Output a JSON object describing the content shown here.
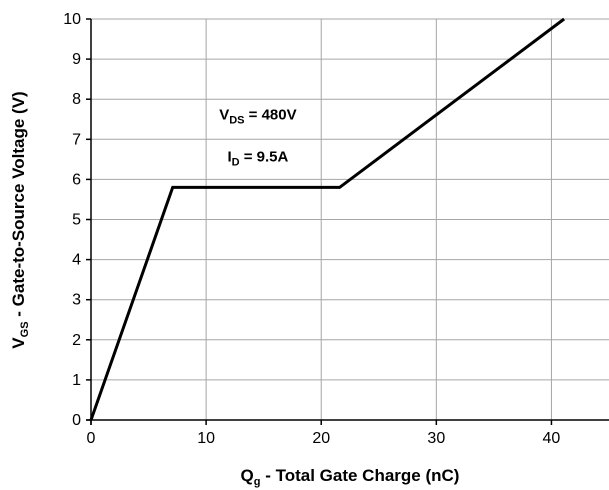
{
  "chart_data": {
    "type": "line",
    "title": "",
    "xlabel": {
      "main": "Q",
      "sub": "g",
      "rest": " - Total Gate Charge (nC)"
    },
    "ylabel": {
      "main": "V",
      "sub": "GS",
      "rest": " - Gate-to-Source Voltage (V)"
    },
    "xlim": [
      0,
      45
    ],
    "ylim": [
      0,
      10
    ],
    "xticks": [
      0,
      10,
      20,
      30,
      40
    ],
    "yticks": [
      0,
      1,
      2,
      3,
      4,
      5,
      6,
      7,
      8,
      9,
      10
    ],
    "grid": true,
    "legend": "none",
    "colors": {
      "line": "#000000",
      "grid": "#a6a6a6",
      "axis": "#000000"
    },
    "series": [
      {
        "x": [
          0,
          7.1,
          21.6,
          41.1
        ],
        "y": [
          0,
          5.8,
          5.8,
          10
        ]
      }
    ],
    "annotations": [
      {
        "id": "vds",
        "main": "V",
        "sub": "DS",
        "rest": " =  480V",
        "x": 14.5,
        "y": 7.5
      },
      {
        "id": "id",
        "main": "I",
        "sub": "D",
        "rest": " = 9.5A",
        "x": 14.5,
        "y": 6.45
      }
    ]
  }
}
